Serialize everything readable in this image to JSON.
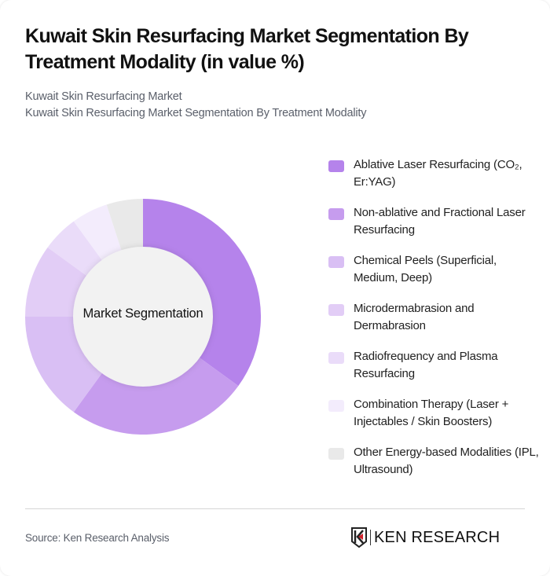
{
  "header": {
    "title": "Kuwait Skin Resurfacing Market Segmentation By Treatment Modality (in value %)",
    "subtitle_line1": "Kuwait Skin Resurfacing Market",
    "subtitle_line2": "Kuwait Skin Resurfacing Market Segmentation By Treatment Modality"
  },
  "chart": {
    "center_label": "Market Segmentation"
  },
  "legend": {
    "items": [
      {
        "label": "Ablative Laser Resurfacing (CO₂, Er:YAG)",
        "color": "#b583eb"
      },
      {
        "label": "Non-ablative and Fractional Laser Resurfacing",
        "color": "#c69cee"
      },
      {
        "label": "Chemical Peels (Superficial, Medium, Deep)",
        "color": "#d9bff4"
      },
      {
        "label": "Microdermabrasion and Dermabrasion",
        "color": "#e2cdf6"
      },
      {
        "label": "Radiofrequency and Plasma Resurfacing",
        "color": "#eadcf9"
      },
      {
        "label": "Combination Therapy (Laser + Injectables / Skin Boosters)",
        "color": "#f3ecfc"
      },
      {
        "label": "Other Energy-based Modalities (IPL, Ultrasound)",
        "color": "#e9e9e9"
      }
    ]
  },
  "footer": {
    "source": "Source: Ken Research Analysis",
    "logo_text": "KEN RESEARCH"
  },
  "chart_data": {
    "type": "pie",
    "subtype": "donut",
    "title": "Kuwait Skin Resurfacing Market Segmentation By Treatment Modality (in value %)",
    "center_label": "Market Segmentation",
    "categories": [
      "Ablative Laser Resurfacing (CO₂, Er:YAG)",
      "Non-ablative and Fractional Laser Resurfacing",
      "Chemical Peels (Superficial, Medium, Deep)",
      "Microdermabrasion and Dermabrasion",
      "Radiofrequency and Plasma Resurfacing",
      "Combination Therapy (Laser + Injectables / Skin Boosters)",
      "Other Energy-based Modalities (IPL, Ultrasound)"
    ],
    "values": [
      35,
      25,
      15,
      10,
      5,
      5,
      5
    ],
    "colors": [
      "#b583eb",
      "#c69cee",
      "#d9bff4",
      "#e2cdf6",
      "#eadcf9",
      "#f3ecfc",
      "#e9e9e9"
    ],
    "legend_position": "right",
    "start_angle": "top, clockwise"
  }
}
